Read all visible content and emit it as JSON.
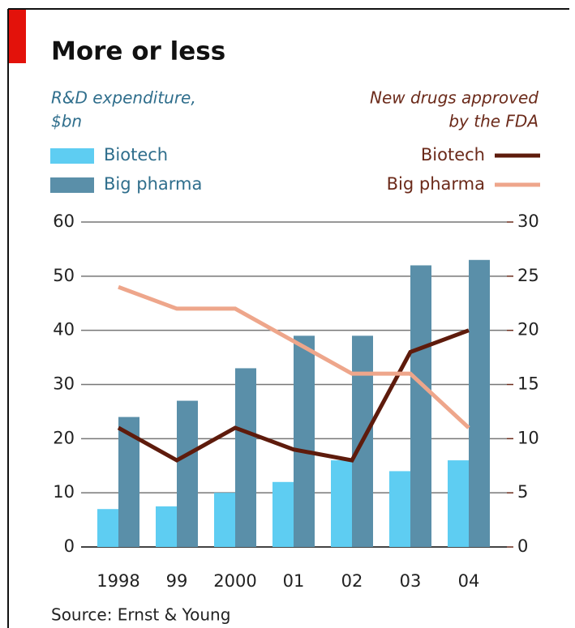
{
  "chart_data": {
    "type": "bar",
    "title": "More or less",
    "left_axis_label": [
      "R&D expenditure,",
      "$bn"
    ],
    "right_axis_label": [
      "New drugs approved",
      "by the FDA"
    ],
    "categories": [
      "1998",
      "99",
      "2000",
      "01",
      "02",
      "03",
      "04"
    ],
    "series": [
      {
        "name": "Biotech",
        "type": "bar",
        "axis": "y",
        "color": "#5ecdf2",
        "values": [
          7,
          7.5,
          10,
          12,
          16,
          14,
          16
        ]
      },
      {
        "name": "Big pharma",
        "type": "bar",
        "axis": "y",
        "color": "#5a8fa9",
        "values": [
          24,
          27,
          33,
          39,
          39,
          52,
          53
        ]
      },
      {
        "name": "Biotech",
        "type": "line",
        "axis": "y2",
        "color": "#5e1b0c",
        "values": [
          11,
          8,
          11,
          9,
          8,
          18,
          20
        ]
      },
      {
        "name": "Big pharma",
        "type": "line",
        "axis": "y2",
        "color": "#eea68b",
        "values": [
          24,
          22,
          22,
          19,
          16,
          16,
          11
        ]
      }
    ],
    "ylim": [
      0,
      60
    ],
    "yticks": [
      0,
      10,
      20,
      30,
      40,
      50,
      60
    ],
    "y2lim": [
      0,
      30
    ],
    "y2ticks": [
      0,
      5,
      10,
      15,
      20,
      25,
      30
    ],
    "grid": true,
    "source": "Source: Ernst & Young"
  }
}
